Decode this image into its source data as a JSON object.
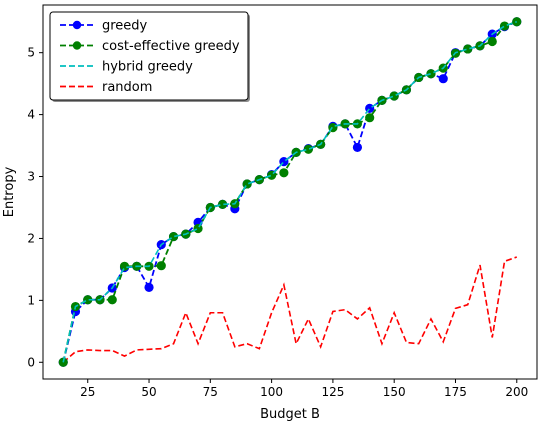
{
  "chart_data": {
    "type": "line",
    "xlabel": "Budget B",
    "ylabel": "Entropy",
    "xlim": [
      6.75,
      208.25
    ],
    "ylim": [
      -0.27,
      5.77
    ],
    "xticks": [
      25,
      50,
      75,
      100,
      125,
      150,
      175,
      200
    ],
    "yticks": [
      0,
      1,
      2,
      3,
      4,
      5
    ],
    "grid": false,
    "legend_position": "top-left",
    "x": [
      15,
      20,
      25,
      30,
      35,
      40,
      45,
      50,
      55,
      60,
      65,
      70,
      75,
      80,
      85,
      90,
      95,
      100,
      105,
      110,
      115,
      120,
      125,
      130,
      135,
      140,
      145,
      150,
      155,
      160,
      165,
      170,
      175,
      180,
      185,
      190,
      195,
      200
    ],
    "series": [
      {
        "name": "greedy",
        "color": "#0000ff",
        "style": "dashed-markers",
        "values": [
          0.0,
          0.82,
          1.01,
          1.01,
          1.2,
          1.53,
          1.55,
          1.21,
          1.9,
          2.03,
          2.07,
          2.26,
          2.5,
          2.55,
          2.48,
          2.88,
          2.95,
          3.03,
          3.24,
          3.39,
          3.45,
          3.52,
          3.81,
          3.85,
          3.47,
          4.1,
          4.23,
          4.3,
          4.4,
          4.6,
          4.66,
          4.58,
          5.0,
          5.06,
          5.11,
          5.3,
          5.42,
          5.5
        ]
      },
      {
        "name": "cost-effective greedy",
        "color": "#008000",
        "style": "dashed-markers",
        "values": [
          0.0,
          0.9,
          1.01,
          1.01,
          1.01,
          1.55,
          1.55,
          1.55,
          1.56,
          2.03,
          2.07,
          2.16,
          2.5,
          2.55,
          2.56,
          2.88,
          2.95,
          3.02,
          3.06,
          3.39,
          3.44,
          3.52,
          3.79,
          3.85,
          3.85,
          3.95,
          4.23,
          4.3,
          4.4,
          4.6,
          4.66,
          4.75,
          4.99,
          5.06,
          5.11,
          5.18,
          5.43,
          5.5
        ]
      },
      {
        "name": "hybrid greedy",
        "color": "#00bfbf",
        "style": "dashed",
        "values": [
          0.0,
          0.9,
          1.01,
          1.01,
          1.2,
          1.53,
          1.55,
          1.55,
          1.9,
          2.03,
          2.07,
          2.16,
          2.5,
          2.55,
          2.56,
          2.88,
          2.95,
          3.02,
          3.24,
          3.39,
          3.44,
          3.52,
          3.81,
          3.85,
          3.85,
          4.1,
          4.23,
          4.3,
          4.4,
          4.6,
          4.66,
          4.75,
          5.0,
          5.06,
          5.11,
          5.3,
          5.43,
          5.5
        ]
      },
      {
        "name": "random",
        "color": "#ff0000",
        "style": "dashed",
        "values": [
          0.0,
          0.17,
          0.2,
          0.19,
          0.19,
          0.1,
          0.2,
          0.21,
          0.22,
          0.3,
          0.8,
          0.3,
          0.8,
          0.8,
          0.25,
          0.3,
          0.22,
          0.8,
          1.25,
          0.3,
          0.7,
          0.25,
          0.82,
          0.85,
          0.7,
          0.88,
          0.3,
          0.8,
          0.32,
          0.3,
          0.7,
          0.33,
          0.87,
          0.93,
          1.57,
          0.4,
          1.63,
          1.7
        ]
      }
    ]
  }
}
